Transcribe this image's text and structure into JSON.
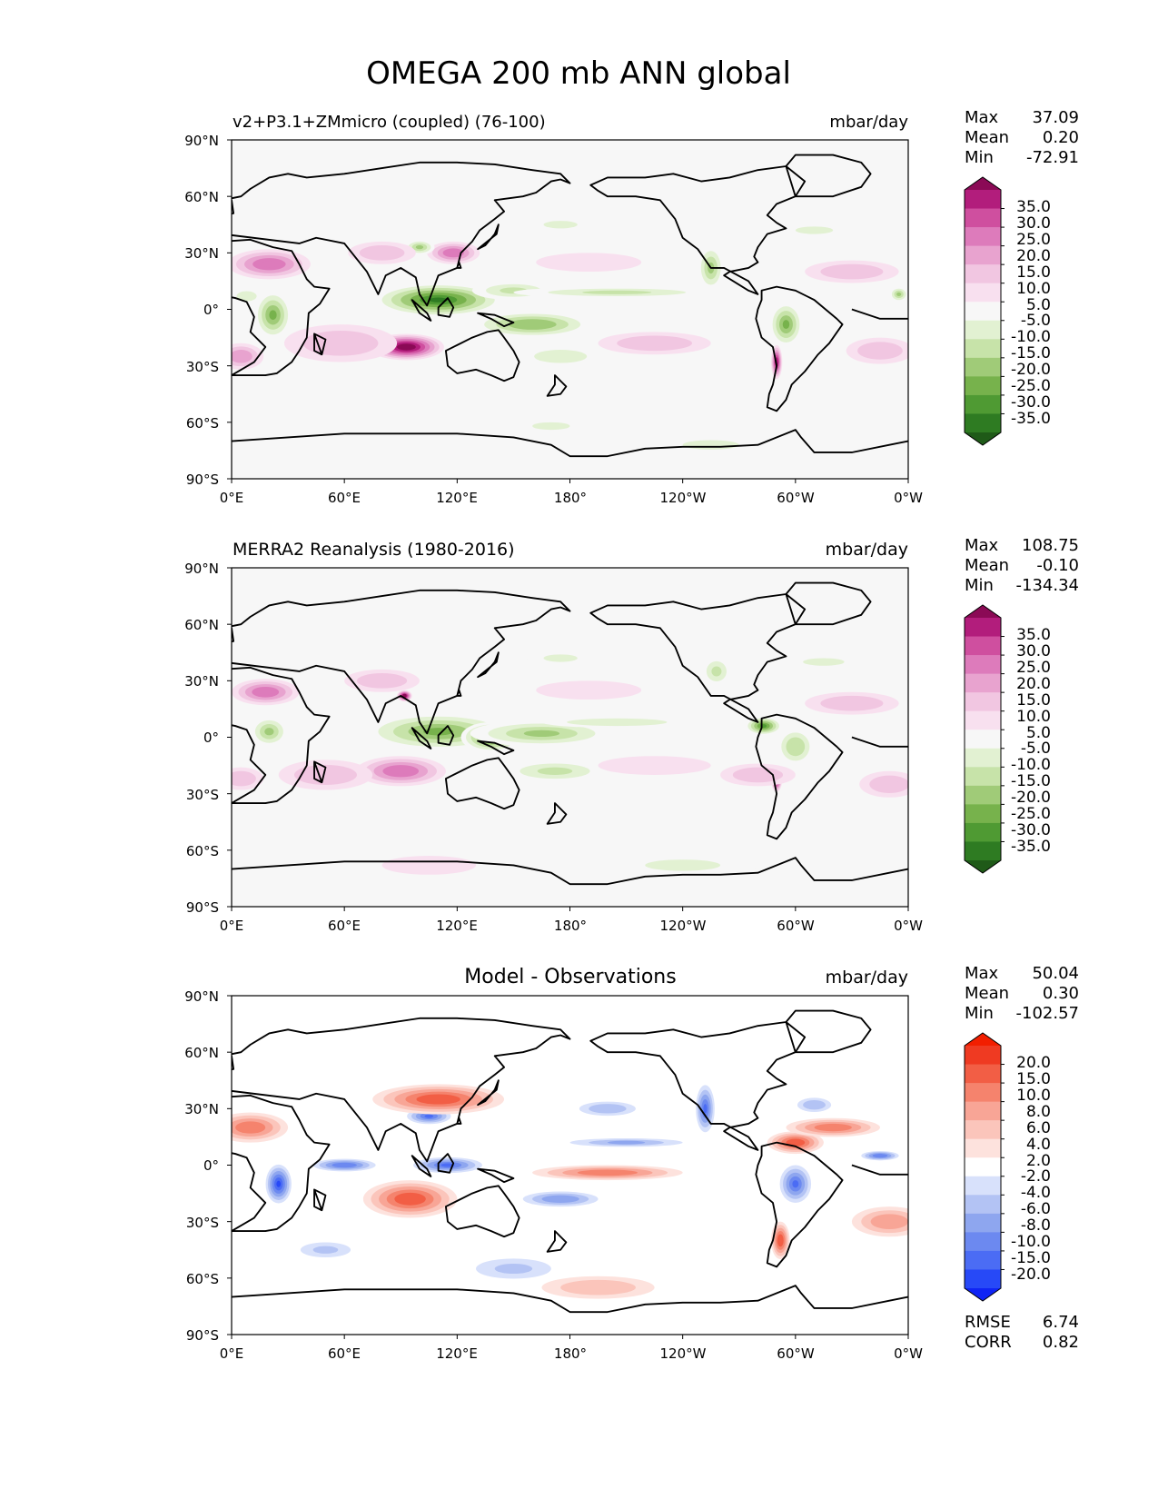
{
  "figure": {
    "title": "OMEGA 200 mb ANN global"
  },
  "colormaps": {
    "prgn": [
      "#1f5a18",
      "#2e7b22",
      "#4f9a33",
      "#77b24c",
      "#a0cb78",
      "#c7e3a9",
      "#e2f1d2",
      "#f7f7f7",
      "#f8e0ef",
      "#f1c6e1",
      "#e8a3cf",
      "#dd7bbb",
      "#cf4f9f",
      "#b21d7c",
      "#8b0a56"
    ],
    "rdwhbu": [
      "#0f24f5",
      "#2749f7",
      "#4b6cf4",
      "#6c89f0",
      "#8ea6ef",
      "#b3c3f4",
      "#d8e1fb",
      "#ffffff",
      "#fde2dd",
      "#fbc5bb",
      "#f8a596",
      "#f5836d",
      "#f25e45",
      "#ef3a22",
      "#f21e00"
    ]
  },
  "coastline_color": "#000000",
  "chart_data": [
    {
      "type": "heatmap",
      "title": "v2+P3.1+ZMmicro (coupled) (76-100)",
      "units": "mbar/day",
      "stats": [
        {
          "label": "Max",
          "value": "37.09"
        },
        {
          "label": "Mean",
          "value": "0.20"
        },
        {
          "label": "Min",
          "value": "-72.91"
        }
      ],
      "x_ticks": [
        "0°E",
        "60°E",
        "120°E",
        "180°",
        "120°W",
        "60°W",
        "0°W"
      ],
      "y_ticks": [
        "90°N",
        "60°N",
        "30°N",
        "0°",
        "30°S",
        "60°S",
        "90°S"
      ],
      "xlim": [
        0,
        360
      ],
      "ylim": [
        -90,
        90
      ],
      "colormap": "prgn",
      "colorbar_levels": [
        "35.0",
        "30.0",
        "25.0",
        "20.0",
        "15.0",
        "10.0",
        "5.0",
        "-5.0",
        "-10.0",
        "-15.0",
        "-20.0",
        "-25.0",
        "-30.0",
        "-35.0"
      ],
      "features": [
        {
          "lon": 110,
          "lat": 5,
          "sx": 35,
          "sy": 9,
          "v": -32
        },
        {
          "lon": 150,
          "lat": 10,
          "sx": 22,
          "sy": 5,
          "v": -14
        },
        {
          "lon": 160,
          "lat": -8,
          "sx": 32,
          "sy": 7,
          "v": -20
        },
        {
          "lon": 205,
          "lat": 9,
          "sx": 55,
          "sy": 3,
          "v": -12
        },
        {
          "lon": 175,
          "lat": -25,
          "sx": 28,
          "sy": 7,
          "v": -9
        },
        {
          "lon": 22,
          "lat": -3,
          "sx": 10,
          "sy": 13,
          "v": -22
        },
        {
          "lon": 8,
          "lat": 7,
          "sx": 8,
          "sy": 4,
          "v": -10
        },
        {
          "lon": 295,
          "lat": -8,
          "sx": 9,
          "sy": 12,
          "v": -24
        },
        {
          "lon": 290,
          "lat": -28,
          "sx": 3,
          "sy": 9,
          "v": 30
        },
        {
          "lon": 255,
          "lat": 22,
          "sx": 7,
          "sy": 12,
          "v": -16
        },
        {
          "lon": 355,
          "lat": 8,
          "sx": 5,
          "sy": 4,
          "v": -16
        },
        {
          "lon": 93,
          "lat": -20,
          "sx": 20,
          "sy": 7,
          "v": 36
        },
        {
          "lon": 58,
          "lat": -18,
          "sx": 30,
          "sy": 10,
          "v": 14
        },
        {
          "lon": 20,
          "lat": 24,
          "sx": 22,
          "sy": 8,
          "v": 22
        },
        {
          "lon": 5,
          "lat": -25,
          "sx": 12,
          "sy": 7,
          "v": 18
        },
        {
          "lon": 118,
          "lat": 30,
          "sx": 14,
          "sy": 6,
          "v": 20
        },
        {
          "lon": 100,
          "lat": 33,
          "sx": 8,
          "sy": 4,
          "v": -18
        },
        {
          "lon": 80,
          "lat": 30,
          "sx": 18,
          "sy": 6,
          "v": 14
        },
        {
          "lon": 225,
          "lat": -18,
          "sx": 30,
          "sy": 6,
          "v": 11
        },
        {
          "lon": 330,
          "lat": 20,
          "sx": 25,
          "sy": 6,
          "v": 14
        },
        {
          "lon": 345,
          "lat": -22,
          "sx": 18,
          "sy": 7,
          "v": 12
        },
        {
          "lon": 190,
          "lat": 25,
          "sx": 28,
          "sy": 5,
          "v": 8
        },
        {
          "lon": 175,
          "lat": 45,
          "sx": 18,
          "sy": 4,
          "v": -9
        },
        {
          "lon": 310,
          "lat": 42,
          "sx": 20,
          "sy": 4,
          "v": -8
        },
        {
          "lon": 170,
          "lat": -62,
          "sx": 20,
          "sy": 4,
          "v": -8
        },
        {
          "lon": 255,
          "lat": -72,
          "sx": 30,
          "sy": 5,
          "v": -7
        }
      ]
    },
    {
      "type": "heatmap",
      "title": "MERRA2 Reanalysis (1980-2016)",
      "units": "mbar/day",
      "stats": [
        {
          "label": "Max",
          "value": "108.75"
        },
        {
          "label": "Mean",
          "value": "-0.10"
        },
        {
          "label": "Min",
          "value": "-134.34"
        }
      ],
      "x_ticks": [
        "0°E",
        "60°E",
        "120°E",
        "180°",
        "120°W",
        "60°W",
        "0°W"
      ],
      "y_ticks": [
        "90°N",
        "60°N",
        "30°N",
        "0°",
        "30°S",
        "60°S",
        "90°S"
      ],
      "xlim": [
        0,
        360
      ],
      "ylim": [
        -90,
        90
      ],
      "colormap": "prgn",
      "colorbar_levels": [
        "35.0",
        "30.0",
        "25.0",
        "20.0",
        "15.0",
        "10.0",
        "5.0",
        "-5.0",
        "-10.0",
        "-15.0",
        "-20.0",
        "-25.0",
        "-30.0",
        "-35.0"
      ],
      "features": [
        {
          "lon": 110,
          "lat": 3,
          "sx": 40,
          "sy": 10,
          "v": -24
        },
        {
          "lon": 138,
          "lat": 0,
          "sx": 16,
          "sy": 8,
          "v": -26
        },
        {
          "lon": 165,
          "lat": 2,
          "sx": 38,
          "sy": 7,
          "v": -16
        },
        {
          "lon": 205,
          "lat": 8,
          "sx": 40,
          "sy": 3,
          "v": -10
        },
        {
          "lon": 172,
          "lat": -18,
          "sx": 28,
          "sy": 6,
          "v": -12
        },
        {
          "lon": 20,
          "lat": 3,
          "sx": 10,
          "sy": 8,
          "v": -16
        },
        {
          "lon": 283,
          "lat": 6,
          "sx": 10,
          "sy": 5,
          "v": -28
        },
        {
          "lon": 300,
          "lat": -5,
          "sx": 10,
          "sy": 10,
          "v": -15
        },
        {
          "lon": 290,
          "lat": -22,
          "sx": 3,
          "sy": 7,
          "v": 38
        },
        {
          "lon": 258,
          "lat": 35,
          "sx": 8,
          "sy": 8,
          "v": -12
        },
        {
          "lon": 90,
          "lat": -18,
          "sx": 24,
          "sy": 8,
          "v": 20
        },
        {
          "lon": 50,
          "lat": -20,
          "sx": 25,
          "sy": 8,
          "v": 12
        },
        {
          "lon": 18,
          "lat": 24,
          "sx": 18,
          "sy": 7,
          "v": 24
        },
        {
          "lon": 5,
          "lat": -22,
          "sx": 12,
          "sy": 6,
          "v": 14
        },
        {
          "lon": 80,
          "lat": 30,
          "sx": 20,
          "sy": 6,
          "v": 12
        },
        {
          "lon": 92,
          "lat": 22,
          "sx": 4,
          "sy": 3,
          "v": 36
        },
        {
          "lon": 280,
          "lat": -20,
          "sx": 20,
          "sy": 6,
          "v": 12
        },
        {
          "lon": 225,
          "lat": -15,
          "sx": 30,
          "sy": 5,
          "v": 9
        },
        {
          "lon": 330,
          "lat": 18,
          "sx": 25,
          "sy": 6,
          "v": 11
        },
        {
          "lon": 350,
          "lat": -25,
          "sx": 16,
          "sy": 7,
          "v": 11
        },
        {
          "lon": 190,
          "lat": 25,
          "sx": 28,
          "sy": 5,
          "v": 7
        },
        {
          "lon": 175,
          "lat": 42,
          "sx": 18,
          "sy": 4,
          "v": -8
        },
        {
          "lon": 315,
          "lat": 40,
          "sx": 22,
          "sy": 4,
          "v": -8
        },
        {
          "lon": 240,
          "lat": -68,
          "sx": 40,
          "sy": 6,
          "v": -9
        },
        {
          "lon": 105,
          "lat": -68,
          "sx": 25,
          "sy": 5,
          "v": 8
        }
      ]
    },
    {
      "type": "heatmap",
      "title": "Model - Observations",
      "units": "mbar/day",
      "stats": [
        {
          "label": "Max",
          "value": "50.04"
        },
        {
          "label": "Mean",
          "value": "0.30"
        },
        {
          "label": "Min",
          "value": "-102.57"
        }
      ],
      "x_ticks": [
        "0°E",
        "60°E",
        "120°E",
        "180°",
        "120°W",
        "60°W",
        "0°W"
      ],
      "y_ticks": [
        "90°N",
        "60°N",
        "30°N",
        "0°",
        "30°S",
        "60°S",
        "90°S"
      ],
      "xlim": [
        0,
        360
      ],
      "ylim": [
        -90,
        90
      ],
      "colormap": "rdwhbu",
      "colorbar_levels": [
        "20.0",
        "15.0",
        "10.0",
        "8.0",
        "6.0",
        "4.0",
        "2.0",
        "-2.0",
        "-4.0",
        "-6.0",
        "-8.0",
        "-10.0",
        "-15.0",
        "-20.0"
      ],
      "metrics": [
        {
          "label": "RMSE",
          "value": "6.74"
        },
        {
          "label": "CORR",
          "value": "0.82"
        }
      ],
      "features": [
        {
          "lon": 115,
          "lat": 0,
          "sx": 22,
          "sy": 5,
          "v": -14
        },
        {
          "lon": 60,
          "lat": 0,
          "sx": 20,
          "sy": 4,
          "v": -10
        },
        {
          "lon": 175,
          "lat": -18,
          "sx": 25,
          "sy": 5,
          "v": -8
        },
        {
          "lon": 25,
          "lat": -10,
          "sx": 8,
          "sy": 12,
          "v": -18
        },
        {
          "lon": 300,
          "lat": -10,
          "sx": 10,
          "sy": 12,
          "v": -14
        },
        {
          "lon": 105,
          "lat": 26,
          "sx": 14,
          "sy": 5,
          "v": -12
        },
        {
          "lon": 252,
          "lat": 30,
          "sx": 6,
          "sy": 15,
          "v": -13
        },
        {
          "lon": 210,
          "lat": 12,
          "sx": 40,
          "sy": 3,
          "v": -7
        },
        {
          "lon": 345,
          "lat": 5,
          "sx": 12,
          "sy": 3,
          "v": -10
        },
        {
          "lon": 200,
          "lat": 30,
          "sx": 20,
          "sy": 5,
          "v": -6
        },
        {
          "lon": 310,
          "lat": 32,
          "sx": 12,
          "sy": 5,
          "v": -6
        },
        {
          "lon": 50,
          "lat": -45,
          "sx": 20,
          "sy": 6,
          "v": -5
        },
        {
          "lon": 150,
          "lat": -55,
          "sx": 30,
          "sy": 8,
          "v": -5
        },
        {
          "lon": 95,
          "lat": -18,
          "sx": 25,
          "sy": 10,
          "v": 14
        },
        {
          "lon": 110,
          "lat": 35,
          "sx": 35,
          "sy": 8,
          "v": 11
        },
        {
          "lon": 200,
          "lat": -4,
          "sx": 40,
          "sy": 4,
          "v": 8
        },
        {
          "lon": 300,
          "lat": 12,
          "sx": 15,
          "sy": 6,
          "v": 12
        },
        {
          "lon": 292,
          "lat": -40,
          "sx": 5,
          "sy": 10,
          "v": 14
        },
        {
          "lon": 10,
          "lat": 20,
          "sx": 20,
          "sy": 8,
          "v": 8
        },
        {
          "lon": 350,
          "lat": -30,
          "sx": 20,
          "sy": 8,
          "v": 7
        },
        {
          "lon": 320,
          "lat": 20,
          "sx": 25,
          "sy": 5,
          "v": 8
        },
        {
          "lon": 195,
          "lat": -65,
          "sx": 30,
          "sy": 6,
          "v": 4
        }
      ]
    }
  ]
}
